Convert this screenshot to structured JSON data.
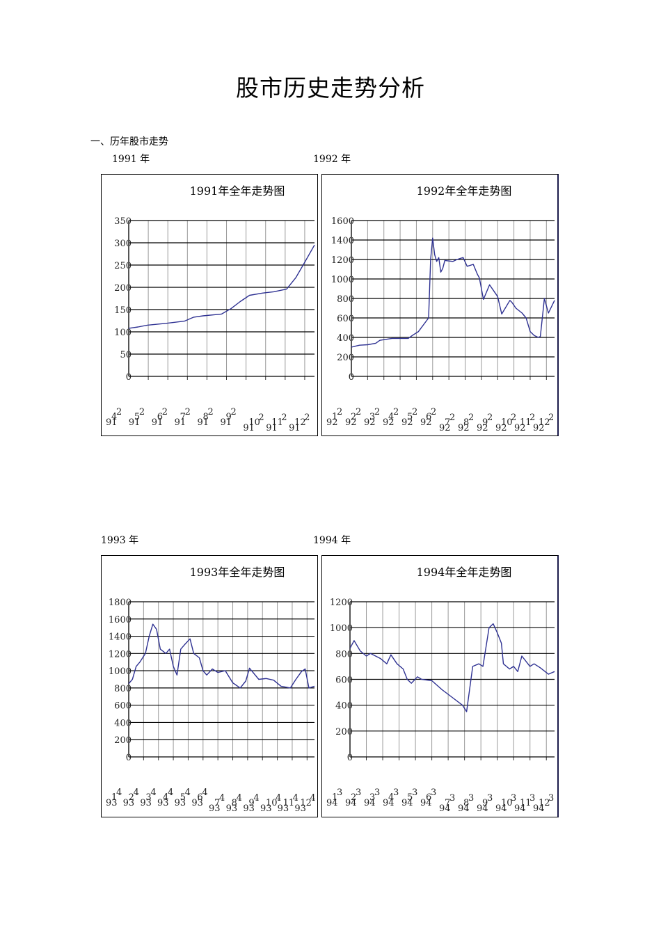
{
  "document": {
    "title": "股市历史走势分析",
    "section_heading": "一、历年股市走势"
  },
  "year_labels": [
    "1991 年",
    "1992 年",
    "1993 年",
    "1994 年"
  ],
  "style": {
    "line_color": "#2e3192",
    "gridline_major": "#000000",
    "gridline_vertical": "#999999"
  },
  "chart_data": [
    {
      "type": "line",
      "title": "1991年全年走势图",
      "xlabel": "",
      "ylabel": "",
      "ylim": [
        0,
        350
      ],
      "yticks": [
        0,
        50,
        100,
        150,
        200,
        250,
        300,
        350
      ],
      "xtick_labels": [
        "91-4-2",
        "91-5-2",
        "91-6-2",
        "91-7-2",
        "91-8-2",
        "91-9-2",
        "91-10-2",
        "91-11-2",
        "91-12-2"
      ],
      "xtick_display": [
        "9¹⁴²",
        "9¹⁵²",
        "9¹⁶²",
        "9¹⁷²",
        "9¹⁸²",
        "9¹⁹²",
        "9¹¹⁰²",
        "9¹¹¹²",
        "9¹¹²²"
      ],
      "grid": true,
      "x": [
        0,
        0.05,
        0.1,
        0.2,
        0.3,
        0.35,
        0.4,
        0.5,
        0.55,
        0.6,
        0.65,
        0.72,
        0.78,
        0.85,
        0.9,
        0.95,
        1.0
      ],
      "values": [
        108,
        111,
        115,
        119,
        124,
        133,
        136,
        140,
        152,
        168,
        182,
        187,
        190,
        196,
        222,
        258,
        295
      ]
    },
    {
      "type": "line",
      "title": "1992年全年走势图",
      "xlabel": "",
      "ylabel": "",
      "ylim": [
        0,
        1600
      ],
      "yticks": [
        0,
        200,
        400,
        600,
        800,
        1000,
        1200,
        1400,
        1600
      ],
      "xtick_labels": [
        "92-1-2",
        "92-2-2",
        "92-3-2",
        "92-4-2",
        "92-5-2",
        "92-6-2",
        "92-7-2",
        "92-8-2",
        "92-9-2",
        "92-10-2",
        "92-11-2",
        "92-12-2"
      ],
      "grid": true,
      "x": [
        0,
        0.04,
        0.08,
        0.12,
        0.14,
        0.2,
        0.28,
        0.3,
        0.33,
        0.38,
        0.39,
        0.4,
        0.41,
        0.42,
        0.43,
        0.44,
        0.45,
        0.46,
        0.5,
        0.52,
        0.55,
        0.57,
        0.6,
        0.62,
        0.63,
        0.65,
        0.68,
        0.7,
        0.72,
        0.74,
        0.78,
        0.79,
        0.81,
        0.84,
        0.86,
        0.88,
        0.9,
        0.92,
        0.93,
        0.95,
        0.97,
        1.0
      ],
      "values": [
        300,
        320,
        325,
        340,
        370,
        390,
        390,
        420,
        460,
        600,
        1200,
        1420,
        1250,
        1180,
        1220,
        1070,
        1110,
        1190,
        1180,
        1200,
        1220,
        1130,
        1150,
        1050,
        1010,
        790,
        940,
        880,
        820,
        640,
        780,
        760,
        700,
        650,
        600,
        460,
        420,
        400,
        410,
        800,
        650,
        780
      ]
    },
    {
      "type": "line",
      "title": "1993年全年走势图",
      "xlabel": "",
      "ylabel": "",
      "ylim": [
        0,
        1800
      ],
      "yticks": [
        0,
        200,
        400,
        600,
        800,
        1000,
        1200,
        1400,
        1600,
        1800
      ],
      "xtick_labels": [
        "93-1-4",
        "93-2-4",
        "93-3-4",
        "93-4-4",
        "93-5-4",
        "93-6-4",
        "93-7-4",
        "93-8-4",
        "93-9-4",
        "93-10-4",
        "93-11-4",
        "93-12-4"
      ],
      "grid": true,
      "x": [
        0,
        0.02,
        0.04,
        0.06,
        0.09,
        0.11,
        0.13,
        0.15,
        0.17,
        0.2,
        0.22,
        0.24,
        0.26,
        0.28,
        0.3,
        0.33,
        0.35,
        0.38,
        0.4,
        0.42,
        0.45,
        0.48,
        0.52,
        0.56,
        0.6,
        0.63,
        0.65,
        0.7,
        0.74,
        0.78,
        0.82,
        0.87,
        0.9,
        0.93,
        0.95,
        0.97,
        1.0
      ],
      "values": [
        850,
        900,
        1050,
        1100,
        1200,
        1400,
        1540,
        1480,
        1250,
        1200,
        1250,
        1050,
        950,
        1250,
        1300,
        1370,
        1200,
        1150,
        1000,
        950,
        1020,
        980,
        1000,
        860,
        800,
        880,
        1030,
        900,
        910,
        890,
        820,
        800,
        900,
        990,
        1020,
        800,
        820
      ]
    },
    {
      "type": "line",
      "title": "1994年全年走势图",
      "xlabel": "",
      "ylabel": "",
      "ylim": [
        0,
        1200
      ],
      "yticks": [
        0,
        200,
        400,
        600,
        800,
        1000,
        1200
      ],
      "xtick_labels": [
        "94-1-3",
        "94-2-3",
        "94-3-3",
        "94-4-3",
        "94-5-3",
        "94-6-3",
        "94-7-3",
        "94-8-3",
        "94-9-3",
        "94-10-3",
        "94-11-3",
        "94-12-3"
      ],
      "grid": true,
      "x": [
        0,
        0.02,
        0.05,
        0.08,
        0.1,
        0.15,
        0.18,
        0.2,
        0.23,
        0.26,
        0.28,
        0.3,
        0.33,
        0.35,
        0.4,
        0.45,
        0.5,
        0.55,
        0.57,
        0.6,
        0.63,
        0.65,
        0.68,
        0.7,
        0.72,
        0.74,
        0.75,
        0.78,
        0.8,
        0.82,
        0.84,
        0.88,
        0.9,
        0.93,
        0.97,
        1.0
      ],
      "values": [
        840,
        900,
        820,
        780,
        800,
        760,
        720,
        790,
        720,
        680,
        600,
        570,
        620,
        600,
        590,
        520,
        460,
        400,
        350,
        700,
        720,
        700,
        1000,
        1030,
        960,
        880,
        720,
        680,
        700,
        660,
        780,
        700,
        720,
        690,
        640,
        660
      ]
    }
  ]
}
